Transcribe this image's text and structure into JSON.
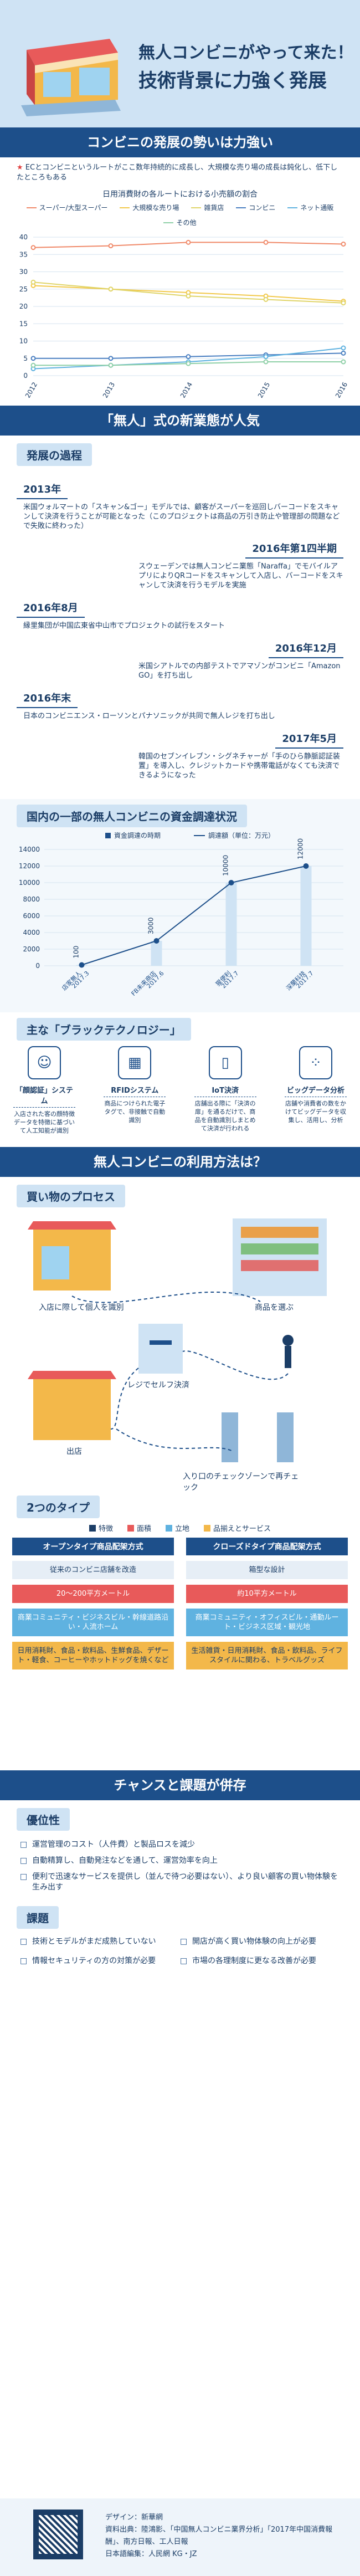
{
  "header": {
    "title_line1": "無人コンビニがやって来た！",
    "title_line2": "技術背景に力強く発展"
  },
  "section1": {
    "banner": "コンビニの発展の勢いは力強い",
    "note": "ECとコンビニというルートがここ数年持続的に成長し、大規模な売り場の成長は鈍化し、低下したところもある",
    "chart_title": "日用消費財の各ルートにおける小売額の割合",
    "chart_data": {
      "type": "line",
      "title": "日用消費財の各ルートにおける小売額の割合",
      "x": [
        "2012",
        "2013",
        "2014",
        "2015",
        "2016"
      ],
      "ylim": [
        0,
        40
      ],
      "yticks": [
        0,
        5,
        10,
        15,
        20,
        25,
        30,
        35,
        40
      ],
      "legend_position": "top",
      "series": [
        {
          "name": "スーパー/大型スーパー",
          "color": "#f08a6a",
          "values": [
            37,
            37.5,
            38.5,
            38.5,
            38
          ]
        },
        {
          "name": "大規模な売り場",
          "color": "#f2c94c",
          "values": [
            26,
            25,
            24,
            23,
            21.5
          ]
        },
        {
          "name": "雑貨店",
          "color": "#e0d56a",
          "values": [
            27,
            25,
            23,
            22,
            21
          ]
        },
        {
          "name": "コンビニ",
          "color": "#4a7fc1",
          "values": [
            5,
            5,
            5.5,
            6,
            6.5
          ]
        },
        {
          "name": "ネット通販",
          "color": "#5fb2e0",
          "values": [
            2,
            3,
            4,
            5.5,
            8
          ]
        },
        {
          "name": "その他",
          "color": "#8fd0a8",
          "values": [
            3,
            3,
            3.5,
            4,
            4
          ]
        }
      ]
    }
  },
  "section2": {
    "banner": "「無人」式の新業態が人気",
    "sub": "発展の過程",
    "timeline": [
      {
        "year": "2013年",
        "text": "米国ウォルマートの「スキャン&ゴー」モデルでは、顧客がスーパーを巡回しバーコードをスキャンして決済を行うことが可能となった（このプロジェクトは商品の万引き防止や管理部の問題などで失敗に終わった）"
      },
      {
        "year": "2016年第1四半期",
        "text": "スウェーデンでは無人コンビニ業態「Naraffa」でモバイルアプリによりQRコードをスキャンして入店し、バーコードをスキャンして決済を行うモデルを実施"
      },
      {
        "year": "2016年8月",
        "text": "縁里集団が中国広東省中山市でプロジェクトの試行をスタート"
      },
      {
        "year": "2016年12月",
        "text": "米国シアトルでの内部テストでアマゾンがコンビニ「Amazon GO」を打ち出し"
      },
      {
        "year": "2016年末",
        "text": "日本のコンビニエンス・ローソンとパナソニックが共同で無人レジを打ち出し"
      },
      {
        "year": "2017年5月",
        "text": "韓国のセブンイレブン・シグネチャーが「手のひら静脈認証装置」を導入し、クレジットカードや携帯電話がなくても決済できるようになった"
      }
    ]
  },
  "section3": {
    "title": "国内の一部の無人コンビニの資金調達状況",
    "chart_data": {
      "type": "bar+line",
      "legend": [
        "資金調達の時期",
        "調達額（単位：万元）"
      ],
      "categories": [
        "店家無人\n2017.3",
        "FB未来商店\n2017.6",
        "猩便利\n2017.7",
        "深蘭科技\n2017.7"
      ],
      "values": [
        100,
        3000,
        10000,
        12000
      ],
      "ylim": [
        0,
        14000
      ],
      "yticks": [
        0,
        2000,
        4000,
        6000,
        8000,
        10000,
        12000,
        14000
      ]
    }
  },
  "section4": {
    "sub": "主な「ブラックテクノロジー」",
    "techs": [
      {
        "name": "「顔認証」システム",
        "desc": "入店された客の顔特徴データを特徴に基づいて人工知能が識別",
        "icon": "face-scan-icon"
      },
      {
        "name": "RFIDシステム",
        "desc": "商品につけられた電子タグで、非接触で自動識別",
        "icon": "rfid-tag-icon"
      },
      {
        "name": "IoT決済",
        "desc": "店舗出る際に「決済の扉」を通るだけで、商品を自動識別しまとめて決済が行われる",
        "icon": "iot-phone-icon"
      },
      {
        "name": "ビッグデータ分析",
        "desc": "店舗や消費者の数をかけてビッグデータを収集し、活用し、分析",
        "icon": "big-data-icon"
      }
    ]
  },
  "section5": {
    "banner": "無人コンビニの利用方法は？",
    "sub_process": "買い物のプロセス",
    "steps": [
      "入店に際して個人を識別",
      "商品を選ぶ",
      "レジでセルフ決済",
      "出店",
      "入り口のチェックゾーンで再チェック"
    ],
    "sub_types": "2つのタイプ",
    "type_legend": [
      "特徴",
      "面積",
      "立地",
      "品揃えとサービス"
    ],
    "open_type": {
      "head": "オープンタイプ商品配架方式",
      "items": [
        "従来のコンビニ店舗を改造",
        "20〜200平方メートル",
        "商業コミュニティ・ビジネスビル・幹線道路沿い・人流ホーム",
        "日用消耗財、食品・飲料品、生鮮食品、デザート・軽食、コーヒーやホットドッグを焼くなど"
      ]
    },
    "closed_type": {
      "head": "クローズドタイプ商品配架方式",
      "items": [
        "箱型な設計",
        "約10平方メートル",
        "商業コミュニティ・オフィスビル・通勤ルート・ビジネス区域・観光地",
        "生活雑貨・日用消耗財、食品・飲料品、ライフスタイルに関わる、トラベルグッズ"
      ]
    }
  },
  "section6": {
    "banner": "チャンスと課題が併存",
    "pros_head": "優位性",
    "pros": [
      "運営管理のコスト（人件費）と製品ロスを減少",
      "自動精算し、自動発注などを通して、運営効率を向上",
      "便利で迅速なサービスを提供し（並んで待つ必要はない）、より良い顧客の買い物体験を生み出す"
    ],
    "cons_head": "課題",
    "cons": [
      "技術とモデルがまだ成熟していない",
      "開店が高く買い物体験の向上が必要",
      "情報セキュリティの方の対策が必要",
      "市場の各理制度に更なる改善が必要"
    ]
  },
  "footer": {
    "design": "デザイン：新華網",
    "source": "資料出典：陸鴻影、「中国無人コンビニ業界分析」「2017年中国消費報酬」、南方日報、工人日報",
    "jp": "日本語編集：人民網  KG・JZ"
  }
}
